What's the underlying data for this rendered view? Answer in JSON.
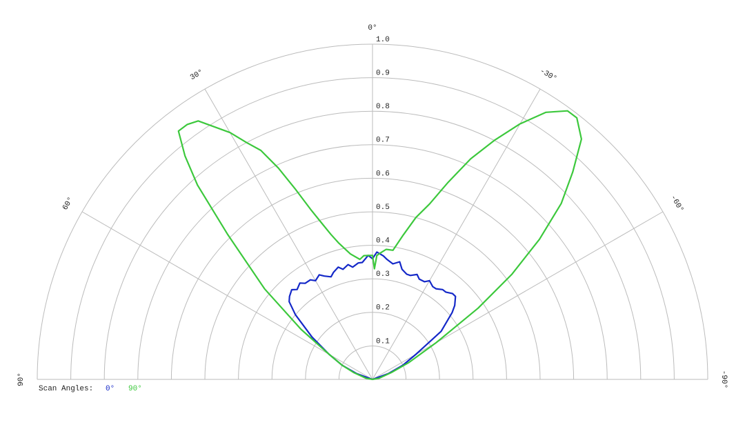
{
  "chart_data": {
    "type": "polar",
    "legend_title": "Scan Angles:",
    "rlim": [
      0,
      1
    ],
    "rticks": [
      0.1,
      0.2,
      0.3,
      0.4,
      0.5,
      0.6,
      0.7,
      0.8,
      0.9,
      {
        "value": 1,
        "label": "1.0"
      }
    ],
    "thetalim": [
      90,
      -90
    ],
    "thetaticks": [
      {
        "value": 90,
        "label": "90°"
      },
      {
        "value": 60,
        "label": "60°"
      },
      {
        "value": 30,
        "label": "30°"
      },
      {
        "value": 0,
        "label": "0°"
      },
      {
        "value": -30,
        "label": "-30°"
      },
      {
        "value": -60,
        "label": "-60°"
      },
      {
        "value": -90,
        "label": "-90°"
      }
    ],
    "grid": true,
    "series": [
      {
        "name": "0°",
        "color": "#1428c8",
        "theta": [
          90,
          70,
          65,
          60,
          55,
          50,
          47,
          45,
          42,
          40,
          37,
          35,
          32,
          30,
          27,
          25,
          22,
          20,
          17,
          15,
          12,
          10,
          7,
          5,
          2,
          0,
          -2,
          -5,
          -7,
          -10,
          -13,
          -15,
          -18,
          -20,
          -23,
          -25,
          -28,
          -30,
          -33,
          -35,
          -38,
          -40,
          -43,
          -45,
          -48,
          -50,
          -55,
          -60,
          -65,
          -70,
          -90
        ],
        "values": [
          0,
          0.05,
          0.1,
          0.15,
          0.22,
          0.3,
          0.34,
          0.35,
          0.36,
          0.35,
          0.36,
          0.35,
          0.35,
          0.34,
          0.35,
          0.34,
          0.33,
          0.34,
          0.35,
          0.34,
          0.35,
          0.34,
          0.35,
          0.35,
          0.37,
          0.36,
          0.38,
          0.37,
          0.36,
          0.35,
          0.36,
          0.34,
          0.33,
          0.33,
          0.34,
          0.33,
          0.33,
          0.34,
          0.33,
          0.33,
          0.34,
          0.34,
          0.35,
          0.35,
          0.33,
          0.31,
          0.25,
          0.15,
          0.1,
          0.05,
          0
        ]
      },
      {
        "name": "90°",
        "color": "#3cc83c",
        "theta": [
          90,
          80,
          70,
          65,
          60,
          55,
          50,
          45,
          42,
          40,
          38,
          36,
          34,
          30,
          28,
          26,
          24,
          22,
          20,
          18,
          16,
          14,
          10,
          6,
          4,
          2,
          0,
          -1,
          -2,
          -4,
          -6,
          -9,
          -12,
          -15,
          -18,
          -21,
          -24,
          -27,
          -30,
          -33,
          -36,
          -38,
          -41,
          -44,
          -47,
          -50,
          -53,
          -56,
          -60,
          -65,
          -70,
          -80,
          -90
        ],
        "values": [
          0,
          0.02,
          0.06,
          0.1,
          0.15,
          0.26,
          0.42,
          0.61,
          0.78,
          0.87,
          0.94,
          0.94,
          0.93,
          0.85,
          0.8,
          0.76,
          0.69,
          0.61,
          0.54,
          0.49,
          0.45,
          0.42,
          0.38,
          0.36,
          0.37,
          0.37,
          0.37,
          0.33,
          0.37,
          0.38,
          0.39,
          0.39,
          0.44,
          0.5,
          0.55,
          0.63,
          0.72,
          0.8,
          0.88,
          0.95,
          0.99,
          0.99,
          0.95,
          0.86,
          0.77,
          0.65,
          0.52,
          0.38,
          0.22,
          0.12,
          0.06,
          0.02,
          0
        ]
      }
    ]
  }
}
